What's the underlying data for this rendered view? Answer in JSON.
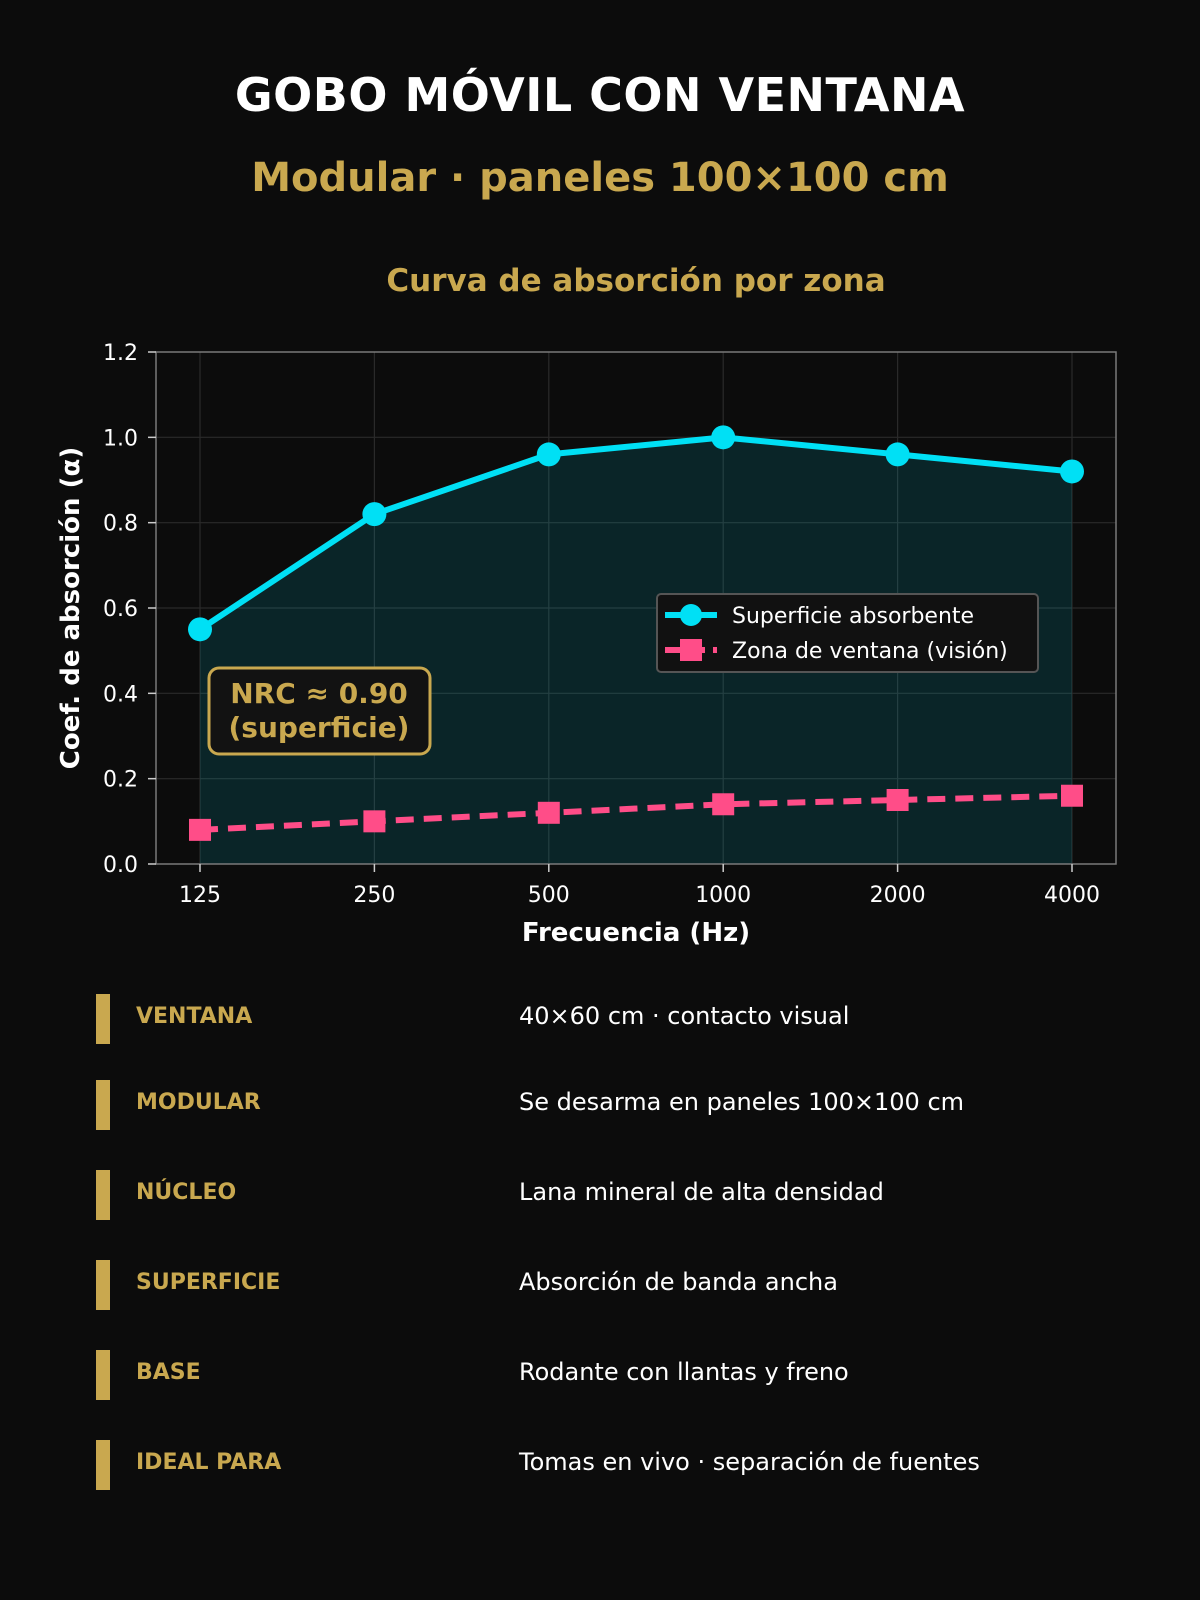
{
  "header": {
    "title": "GOBO MÓVIL CON VENTANA",
    "subtitle": "Modular · paneles 100×100 cm"
  },
  "chart_data": {
    "type": "line",
    "title": "Curva de absorción por zona",
    "xlabel": "Frecuencia (Hz)",
    "ylabel": "Coef. de absorción (α)",
    "categories": [
      "125",
      "250",
      "500",
      "1000",
      "2000",
      "4000"
    ],
    "ylim": [
      0,
      1.2
    ],
    "yticks": [
      "0.0",
      "0.2",
      "0.4",
      "0.6",
      "0.8",
      "1.0",
      "1.2"
    ],
    "grid": true,
    "legend_position": "center-right",
    "series": [
      {
        "name": "Superficie absorbente",
        "values": [
          0.55,
          0.82,
          0.96,
          1.0,
          0.96,
          0.92
        ],
        "color": "#00e0f5",
        "marker": "circle",
        "line_style": "solid",
        "filled": true
      },
      {
        "name": "Zona de ventana (visión)",
        "values": [
          0.08,
          0.1,
          0.12,
          0.14,
          0.15,
          0.16
        ],
        "color": "#ff4d88",
        "marker": "square",
        "line_style": "dashed",
        "filled": false
      }
    ],
    "annotation": {
      "line1": "NRC ≈ 0.90",
      "line2": "(superficie)"
    }
  },
  "colors": {
    "background": "#0c0c0c",
    "accent": "#c9a84f"
  },
  "specs": [
    {
      "label": "VENTANA",
      "value": "40×60 cm · contacto visual"
    },
    {
      "label": "MODULAR",
      "value": "Se desarma en paneles 100×100 cm"
    },
    {
      "label": "NÚCLEO",
      "value": "Lana mineral de alta densidad"
    },
    {
      "label": "SUPERFICIE",
      "value": "Absorción de banda ancha"
    },
    {
      "label": "BASE",
      "value": "Rodante con llantas y freno"
    },
    {
      "label": "IDEAL PARA",
      "value": "Tomas en vivo · separación de fuentes"
    }
  ]
}
